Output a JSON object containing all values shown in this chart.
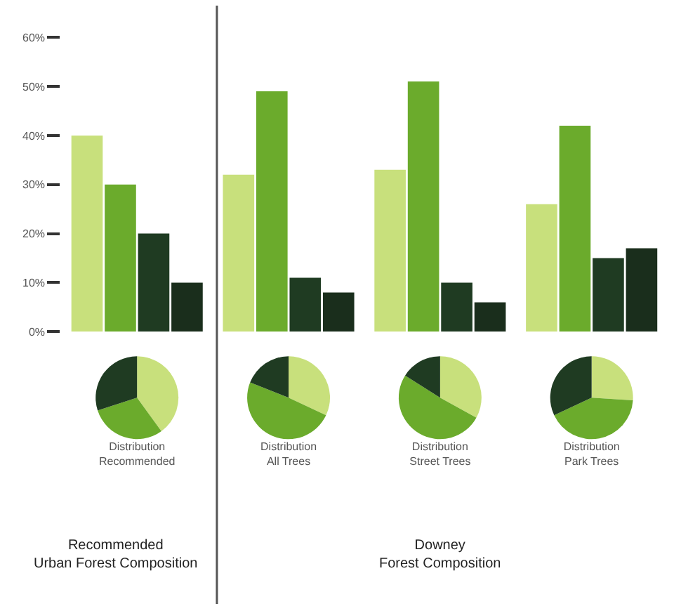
{
  "chart_data": [
    {
      "type": "bar",
      "categories": [
        null,
        null,
        null,
        null
      ],
      "series": [
        {
          "color": "#c8e07c",
          "values": [
            40,
            32,
            33,
            26
          ]
        },
        {
          "color": "#6bab2c",
          "values": [
            30,
            49,
            51,
            42
          ]
        },
        {
          "color": "#1f3b22",
          "values": [
            20,
            11,
            10,
            15
          ]
        },
        {
          "color": "#1a2e1c",
          "values": [
            10,
            8,
            6,
            17
          ]
        }
      ],
      "ylim": [
        0,
        60
      ],
      "yticks": [
        {
          "value": 0,
          "label": "0%"
        },
        {
          "value": 10,
          "label": "10%"
        },
        {
          "value": 20,
          "label": "20%"
        },
        {
          "value": 30,
          "label": "30%"
        },
        {
          "value": 40,
          "label": "40%"
        },
        {
          "value": 50,
          "label": "50%"
        },
        {
          "value": 60,
          "label": "60%"
        }
      ],
      "tick_labels": "y"
    },
    {
      "type": "pie",
      "title": "Distribution\nRecommended",
      "categories": [
        null,
        null,
        null
      ],
      "values": [
        40,
        30,
        30
      ],
      "colors": [
        "#c8e07c",
        "#6bab2c",
        "#1f3b22"
      ],
      "annotations": [
        "Recommended\nUrban Forest Composition"
      ]
    },
    {
      "type": "pie",
      "title": "Distribution\nAll Trees",
      "categories": [
        null,
        null,
        null
      ],
      "values": [
        32,
        49,
        19
      ],
      "colors": [
        "#c8e07c",
        "#6bab2c",
        "#1f3b22"
      ]
    },
    {
      "type": "pie",
      "title": "Distribution\nStreet Trees",
      "categories": [
        null,
        null,
        null
      ],
      "values": [
        33,
        51,
        16
      ],
      "colors": [
        "#c8e07c",
        "#6bab2c",
        "#1f3b22"
      ],
      "annotations": [
        "Downey\nForest Composition"
      ]
    },
    {
      "type": "pie",
      "title": "Distribution\nPark Trees",
      "categories": [
        null,
        null,
        null
      ],
      "values": [
        26,
        42,
        32
      ],
      "colors": [
        "#c8e07c",
        "#6bab2c",
        "#1f3b22"
      ]
    }
  ]
}
